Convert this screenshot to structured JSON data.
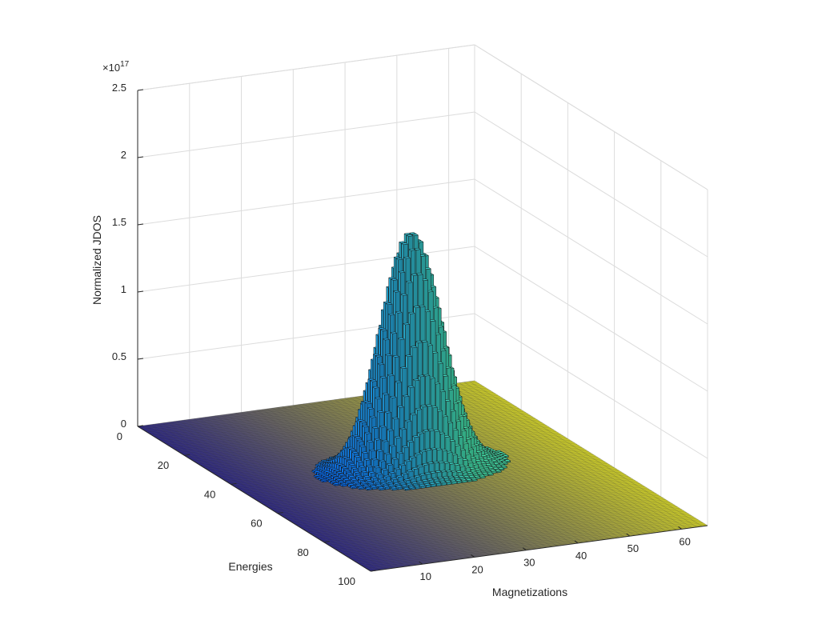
{
  "chart_data": {
    "type": "bar3",
    "title": "",
    "xlabel": "Magnetizations",
    "ylabel": "Energies",
    "zlabel": "Normalized JDOS",
    "z_exponent_label": "×10",
    "z_exponent_power": "17",
    "xlim": [
      0,
      65
    ],
    "ylim": [
      0,
      100
    ],
    "zlim": [
      0,
      2.5
    ],
    "x_ticks": [
      10,
      20,
      30,
      40,
      50,
      60
    ],
    "y_ticks": [
      0,
      20,
      40,
      60,
      80,
      100
    ],
    "z_ticks": [
      0,
      0.5,
      1,
      1.5,
      2,
      2.5
    ],
    "x_tick_labels": [
      "10",
      "20",
      "30",
      "40",
      "50",
      "60"
    ],
    "y_tick_labels": [
      "0",
      "20",
      "40",
      "60",
      "80",
      "100"
    ],
    "z_tick_labels": [
      "0",
      "0.5",
      "1",
      "1.5",
      "2",
      "2.5"
    ],
    "peak": {
      "magnetization": 33,
      "energy": 44,
      "value": 1.75
    },
    "spread": {
      "magnetization": 5.5,
      "energy": 4.2
    },
    "grid": true,
    "colormap": "parula"
  }
}
